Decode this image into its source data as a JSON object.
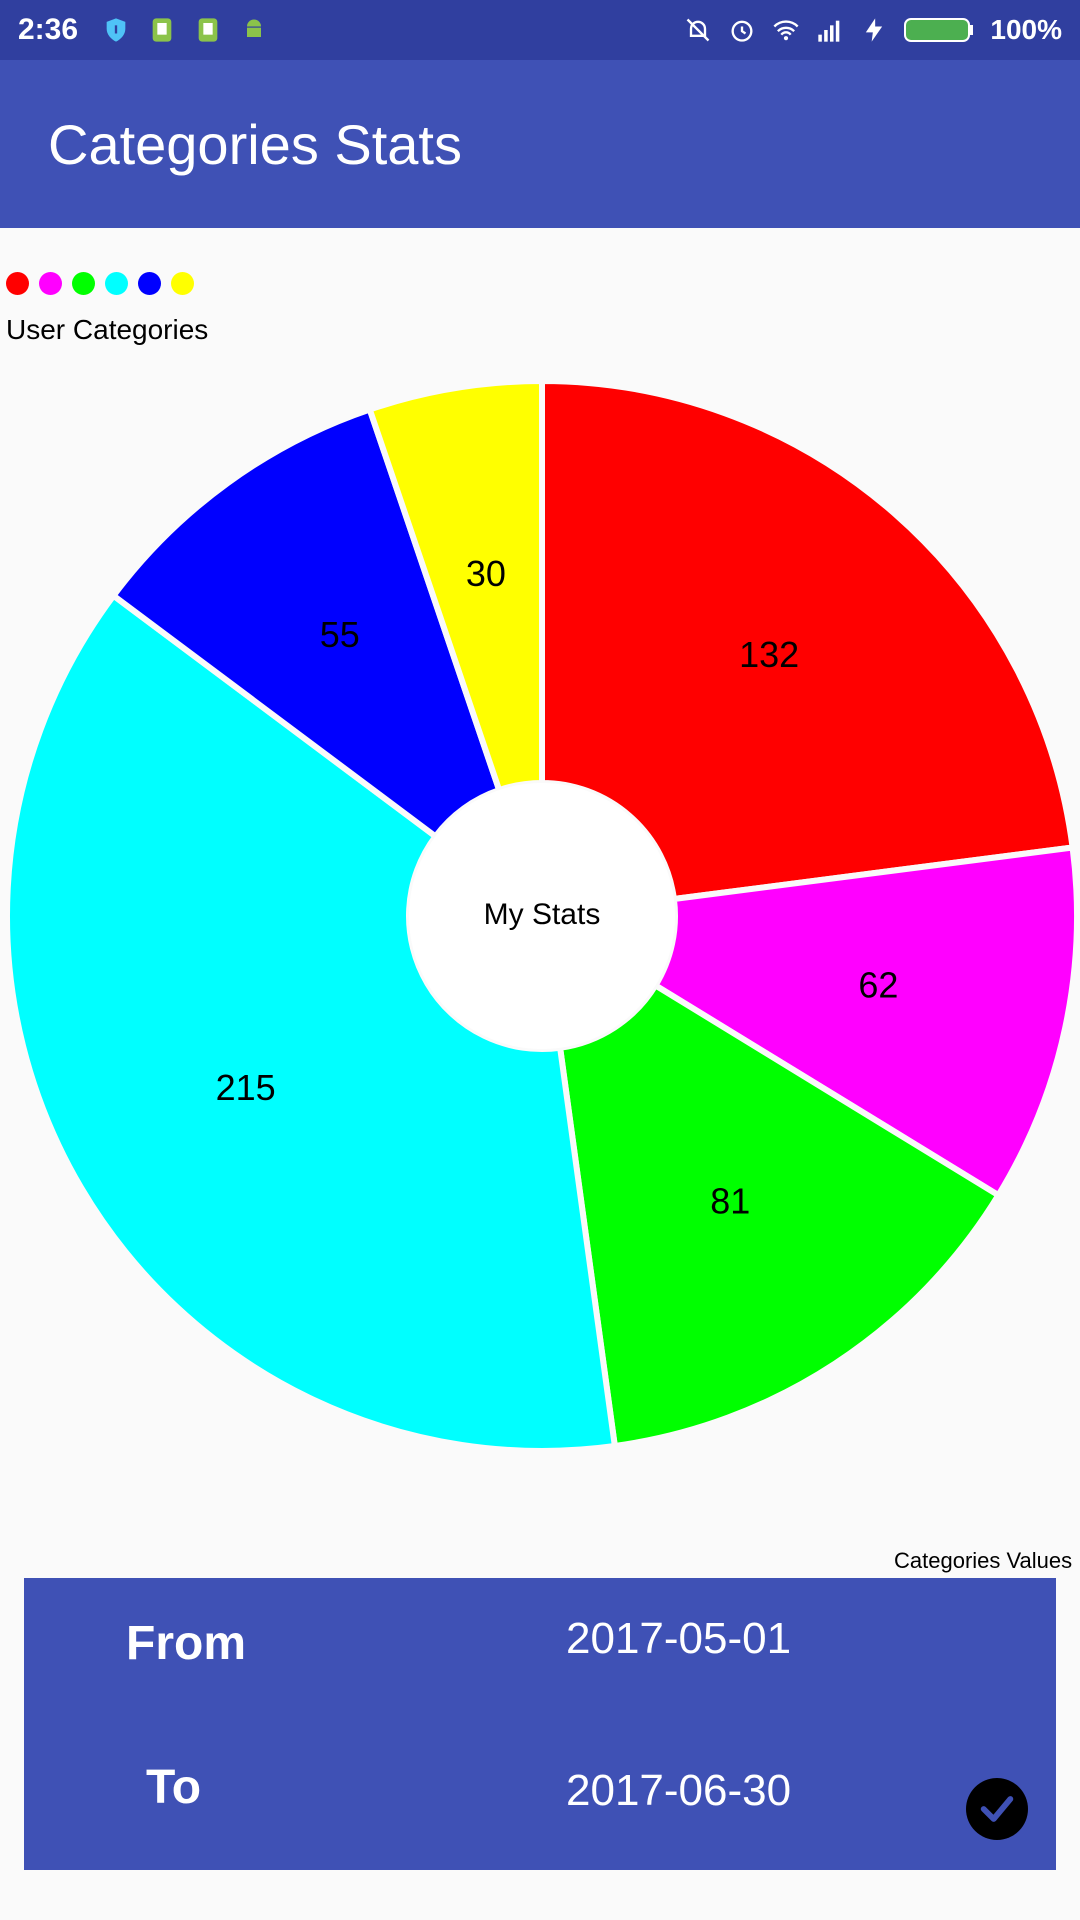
{
  "status_bar": {
    "time": "2:36",
    "battery_percent": "100%",
    "icons_left": [
      "shield-icon",
      "sd-card-icon",
      "sd-card-icon",
      "android-icon"
    ],
    "icons_right": [
      "silent-icon",
      "alarm-icon",
      "wifi-icon",
      "signal-icon",
      "charging-icon",
      "battery-icon"
    ]
  },
  "app_bar": {
    "title": "Categories Stats",
    "color": "#3f51b5"
  },
  "legend": {
    "colors": [
      "#ff0000",
      "#ff00ff",
      "#00ff00",
      "#00ffff",
      "#0000ff",
      "#ffff00"
    ]
  },
  "chart_data": {
    "type": "pie",
    "title": "User Categories",
    "center_text": "My Stats",
    "description": "Categories Values",
    "slices": [
      {
        "value": 132,
        "color": "#ff0000"
      },
      {
        "value": 62,
        "color": "#ff00ff"
      },
      {
        "value": 81,
        "color": "#00ff00"
      },
      {
        "value": 215,
        "color": "#00ffff"
      },
      {
        "value": 55,
        "color": "#0000ff"
      },
      {
        "value": 30,
        "color": "#ffff00"
      }
    ]
  },
  "date_range": {
    "from_label": "From",
    "from_value": "2017-05-01",
    "to_label": "To",
    "to_value": "2017-06-30"
  }
}
